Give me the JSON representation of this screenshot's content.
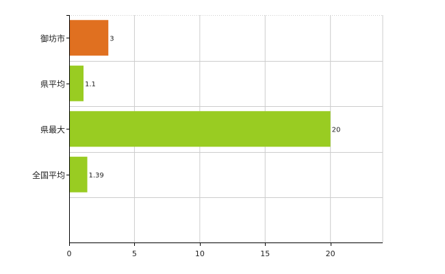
{
  "chart_data": {
    "type": "bar",
    "orientation": "horizontal",
    "categories": [
      "御坊市",
      "県平均",
      "県最大",
      "全国平均"
    ],
    "values": [
      3,
      1.1,
      20,
      1.39
    ],
    "value_labels": [
      "3",
      "1.1",
      "20",
      "1.39"
    ],
    "bar_colors": [
      "#e07020",
      "#99cc22",
      "#99cc22",
      "#99cc22"
    ],
    "xlim": [
      0,
      24
    ],
    "xticks": [
      0,
      5,
      10,
      15,
      20
    ],
    "xtick_labels": [
      "0",
      "5",
      "10",
      "15",
      "20"
    ],
    "grid": true,
    "grid_style": "dotted",
    "axis_color": "#000000",
    "grid_color": "#cccccc"
  }
}
